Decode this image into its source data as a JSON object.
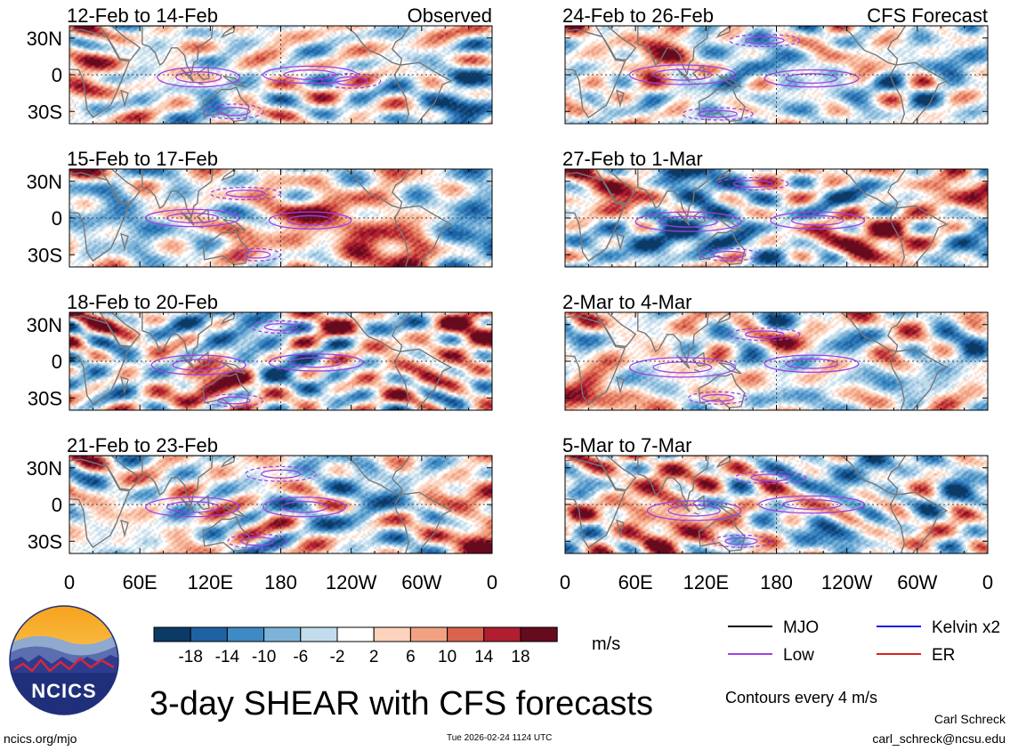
{
  "chart_data": {
    "type": "heatmap",
    "title": "3-day SHEAR with CFS forecasts",
    "units": "m/s",
    "contour_note": "Contours every 4 m/s",
    "xticks": [
      "0",
      "60E",
      "120E",
      "180",
      "120W",
      "60W",
      "0"
    ],
    "yticks": [
      "30N",
      "0",
      "30S"
    ],
    "lon_range": [
      0,
      360
    ],
    "lat_range": [
      -40,
      40
    ],
    "colorbar": {
      "labels": [
        "-18",
        "-14",
        "-10",
        "-6",
        "-2",
        "2",
        "6",
        "10",
        "14",
        "18"
      ],
      "colors": [
        "#0b3a66",
        "#1f62a4",
        "#3d8ac4",
        "#7db3d8",
        "#c2dcec",
        "#ffffff",
        "#fcd3bd",
        "#f2a283",
        "#d9634d",
        "#b01e30",
        "#660a1e"
      ]
    },
    "legend": [
      {
        "label": "MJO",
        "color": "#000000"
      },
      {
        "label": "Low",
        "color": "#a040e6"
      },
      {
        "label": "Kelvin x2",
        "color": "#1010ee"
      },
      {
        "label": "ER",
        "color": "#d82020"
      }
    ],
    "panels": [
      {
        "period": "12-Feb to 14-Feb",
        "tag": "Observed"
      },
      {
        "period": "15-Feb to 17-Feb",
        "tag": ""
      },
      {
        "period": "18-Feb to 20-Feb",
        "tag": ""
      },
      {
        "period": "21-Feb to 23-Feb",
        "tag": ""
      },
      {
        "period": "24-Feb to 26-Feb",
        "tag": "CFS Forecast"
      },
      {
        "period": "27-Feb to 1-Mar",
        "tag": ""
      },
      {
        "period": "2-Mar to 4-Mar",
        "tag": ""
      },
      {
        "period": "5-Mar to 7-Mar",
        "tag": ""
      }
    ]
  },
  "logo": {
    "text": "NCICS"
  },
  "footer": {
    "url": "ncics.org/mjo",
    "timestamp": "Tue 2026-02-24 1124 UTC",
    "author": "Carl Schreck",
    "email": "carl_schreck@ncsu.edu"
  }
}
